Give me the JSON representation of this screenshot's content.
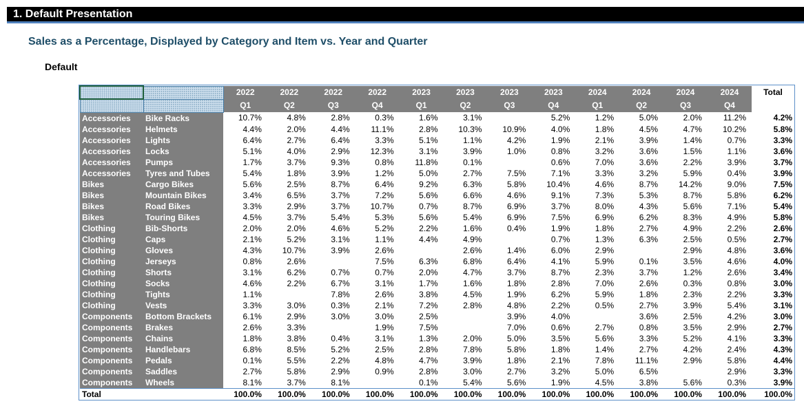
{
  "section_title": "1. Default Presentation",
  "subtitle": "Sales as a Percentage, Displayed by Category and Item vs. Year and Quarter",
  "label": "Default",
  "table": {
    "years": [
      "2022",
      "2022",
      "2022",
      "2022",
      "2023",
      "2023",
      "2023",
      "2023",
      "2024",
      "2024",
      "2024",
      "2024"
    ],
    "quarters": [
      "Q1",
      "Q2",
      "Q3",
      "Q4",
      "Q1",
      "Q2",
      "Q3",
      "Q4",
      "Q1",
      "Q2",
      "Q3",
      "Q4"
    ],
    "total_header": "Total",
    "rows": [
      {
        "cat": "Accessories",
        "item": "Bike Racks",
        "vals": [
          "10.7%",
          "4.8%",
          "2.8%",
          "0.3%",
          "1.6%",
          "3.1%",
          "",
          "5.2%",
          "1.2%",
          "5.0%",
          "2.0%",
          "11.2%"
        ],
        "total": "4.2%"
      },
      {
        "cat": "Accessories",
        "item": "Helmets",
        "vals": [
          "4.4%",
          "2.0%",
          "4.4%",
          "11.1%",
          "2.8%",
          "10.3%",
          "10.9%",
          "4.0%",
          "1.8%",
          "4.5%",
          "4.7%",
          "10.2%"
        ],
        "total": "5.8%"
      },
      {
        "cat": "Accessories",
        "item": "Lights",
        "vals": [
          "6.4%",
          "2.7%",
          "6.4%",
          "3.3%",
          "5.1%",
          "1.1%",
          "4.2%",
          "1.9%",
          "2.1%",
          "3.9%",
          "1.4%",
          "0.7%"
        ],
        "total": "3.3%"
      },
      {
        "cat": "Accessories",
        "item": "Locks",
        "vals": [
          "5.1%",
          "4.0%",
          "2.9%",
          "12.3%",
          "3.1%",
          "3.9%",
          "1.0%",
          "0.8%",
          "3.2%",
          "3.6%",
          "1.5%",
          "1.1%"
        ],
        "total": "3.6%"
      },
      {
        "cat": "Accessories",
        "item": "Pumps",
        "vals": [
          "1.7%",
          "3.7%",
          "9.3%",
          "0.8%",
          "11.8%",
          "0.1%",
          "",
          "0.6%",
          "7.0%",
          "3.6%",
          "2.2%",
          "3.9%"
        ],
        "total": "3.7%"
      },
      {
        "cat": "Accessories",
        "item": "Tyres and Tubes",
        "vals": [
          "5.4%",
          "1.8%",
          "3.9%",
          "1.2%",
          "5.0%",
          "2.7%",
          "7.5%",
          "7.1%",
          "3.3%",
          "3.2%",
          "5.9%",
          "0.4%"
        ],
        "total": "3.9%"
      },
      {
        "cat": "Bikes",
        "item": "Cargo Bikes",
        "vals": [
          "5.6%",
          "2.5%",
          "8.7%",
          "6.4%",
          "9.2%",
          "6.3%",
          "5.8%",
          "10.4%",
          "4.6%",
          "8.7%",
          "14.2%",
          "9.0%"
        ],
        "total": "7.5%"
      },
      {
        "cat": "Bikes",
        "item": "Mountain Bikes",
        "vals": [
          "3.4%",
          "6.5%",
          "3.7%",
          "7.2%",
          "5.6%",
          "6.6%",
          "4.6%",
          "9.1%",
          "7.3%",
          "5.3%",
          "8.7%",
          "5.8%"
        ],
        "total": "6.2%"
      },
      {
        "cat": "Bikes",
        "item": "Road Bikes",
        "vals": [
          "3.3%",
          "2.9%",
          "3.7%",
          "10.7%",
          "0.7%",
          "8.7%",
          "6.9%",
          "3.7%",
          "8.0%",
          "4.3%",
          "5.6%",
          "7.1%"
        ],
        "total": "5.4%"
      },
      {
        "cat": "Bikes",
        "item": "Touring Bikes",
        "vals": [
          "4.5%",
          "3.7%",
          "5.4%",
          "5.3%",
          "5.6%",
          "5.4%",
          "6.9%",
          "7.5%",
          "6.9%",
          "6.2%",
          "8.3%",
          "4.9%"
        ],
        "total": "5.8%"
      },
      {
        "cat": "Clothing",
        "item": "Bib-Shorts",
        "vals": [
          "2.0%",
          "2.0%",
          "4.6%",
          "5.2%",
          "2.2%",
          "1.6%",
          "0.4%",
          "1.9%",
          "1.8%",
          "2.7%",
          "4.9%",
          "2.2%"
        ],
        "total": "2.6%"
      },
      {
        "cat": "Clothing",
        "item": "Caps",
        "vals": [
          "2.1%",
          "5.2%",
          "3.1%",
          "1.1%",
          "4.4%",
          "4.9%",
          "",
          "0.7%",
          "1.3%",
          "6.3%",
          "2.5%",
          "0.5%"
        ],
        "total": "2.7%"
      },
      {
        "cat": "Clothing",
        "item": "Gloves",
        "vals": [
          "4.3%",
          "10.7%",
          "3.9%",
          "2.6%",
          "",
          "2.6%",
          "1.4%",
          "6.0%",
          "2.9%",
          "",
          "2.9%",
          "4.8%"
        ],
        "total": "3.6%"
      },
      {
        "cat": "Clothing",
        "item": "Jerseys",
        "vals": [
          "0.8%",
          "2.6%",
          "",
          "7.5%",
          "6.3%",
          "6.8%",
          "6.4%",
          "4.1%",
          "5.9%",
          "0.1%",
          "3.5%",
          "4.6%"
        ],
        "total": "4.0%"
      },
      {
        "cat": "Clothing",
        "item": "Shorts",
        "vals": [
          "3.1%",
          "6.2%",
          "0.7%",
          "0.7%",
          "2.0%",
          "4.7%",
          "3.7%",
          "8.7%",
          "2.3%",
          "3.7%",
          "1.2%",
          "2.6%"
        ],
        "total": "3.4%"
      },
      {
        "cat": "Clothing",
        "item": "Socks",
        "vals": [
          "4.6%",
          "2.2%",
          "6.7%",
          "3.1%",
          "1.7%",
          "1.6%",
          "1.8%",
          "2.8%",
          "7.0%",
          "2.6%",
          "0.3%",
          "0.8%"
        ],
        "total": "3.0%"
      },
      {
        "cat": "Clothing",
        "item": "Tights",
        "vals": [
          "1.1%",
          "",
          "7.8%",
          "2.6%",
          "3.8%",
          "4.5%",
          "1.9%",
          "6.2%",
          "5.9%",
          "1.8%",
          "2.3%",
          "2.2%"
        ],
        "total": "3.3%"
      },
      {
        "cat": "Clothing",
        "item": "Vests",
        "vals": [
          "3.3%",
          "3.0%",
          "0.3%",
          "2.1%",
          "7.2%",
          "2.8%",
          "4.8%",
          "2.2%",
          "0.5%",
          "2.7%",
          "3.9%",
          "5.4%"
        ],
        "total": "3.1%"
      },
      {
        "cat": "Components",
        "item": "Bottom Brackets",
        "vals": [
          "6.1%",
          "2.9%",
          "3.0%",
          "3.0%",
          "2.5%",
          "",
          "3.9%",
          "4.0%",
          "",
          "3.6%",
          "2.5%",
          "4.2%"
        ],
        "total": "3.0%"
      },
      {
        "cat": "Components",
        "item": "Brakes",
        "vals": [
          "2.6%",
          "3.3%",
          "",
          "1.9%",
          "7.5%",
          "",
          "7.0%",
          "0.6%",
          "2.7%",
          "0.8%",
          "3.5%",
          "2.9%"
        ],
        "total": "2.7%"
      },
      {
        "cat": "Components",
        "item": "Chains",
        "vals": [
          "1.8%",
          "3.8%",
          "0.4%",
          "3.1%",
          "1.3%",
          "2.0%",
          "5.0%",
          "3.5%",
          "5.6%",
          "3.3%",
          "5.2%",
          "4.1%"
        ],
        "total": "3.3%"
      },
      {
        "cat": "Components",
        "item": "Handlebars",
        "vals": [
          "6.8%",
          "8.5%",
          "5.2%",
          "2.5%",
          "2.8%",
          "7.8%",
          "5.8%",
          "1.8%",
          "1.4%",
          "2.7%",
          "4.2%",
          "2.4%"
        ],
        "total": "4.3%"
      },
      {
        "cat": "Components",
        "item": "Pedals",
        "vals": [
          "0.1%",
          "5.5%",
          "2.2%",
          "4.8%",
          "4.7%",
          "3.9%",
          "1.8%",
          "2.1%",
          "7.8%",
          "11.1%",
          "2.9%",
          "5.8%"
        ],
        "total": "4.4%"
      },
      {
        "cat": "Components",
        "item": "Saddles",
        "vals": [
          "2.7%",
          "5.8%",
          "2.9%",
          "0.9%",
          "2.8%",
          "3.0%",
          "2.7%",
          "3.2%",
          "5.0%",
          "6.5%",
          "",
          "2.9%"
        ],
        "total": "3.3%"
      },
      {
        "cat": "Components",
        "item": "Wheels",
        "vals": [
          "8.1%",
          "3.7%",
          "8.1%",
          "",
          "0.1%",
          "5.4%",
          "5.6%",
          "1.9%",
          "4.5%",
          "3.8%",
          "5.6%",
          "0.3%"
        ],
        "total": "3.9%"
      }
    ],
    "total_row": {
      "label": "Total",
      "vals": [
        "100.0%",
        "100.0%",
        "100.0%",
        "100.0%",
        "100.0%",
        "100.0%",
        "100.0%",
        "100.0%",
        "100.0%",
        "100.0%",
        "100.0%",
        "100.0%"
      ],
      "total": "100.0%"
    }
  }
}
